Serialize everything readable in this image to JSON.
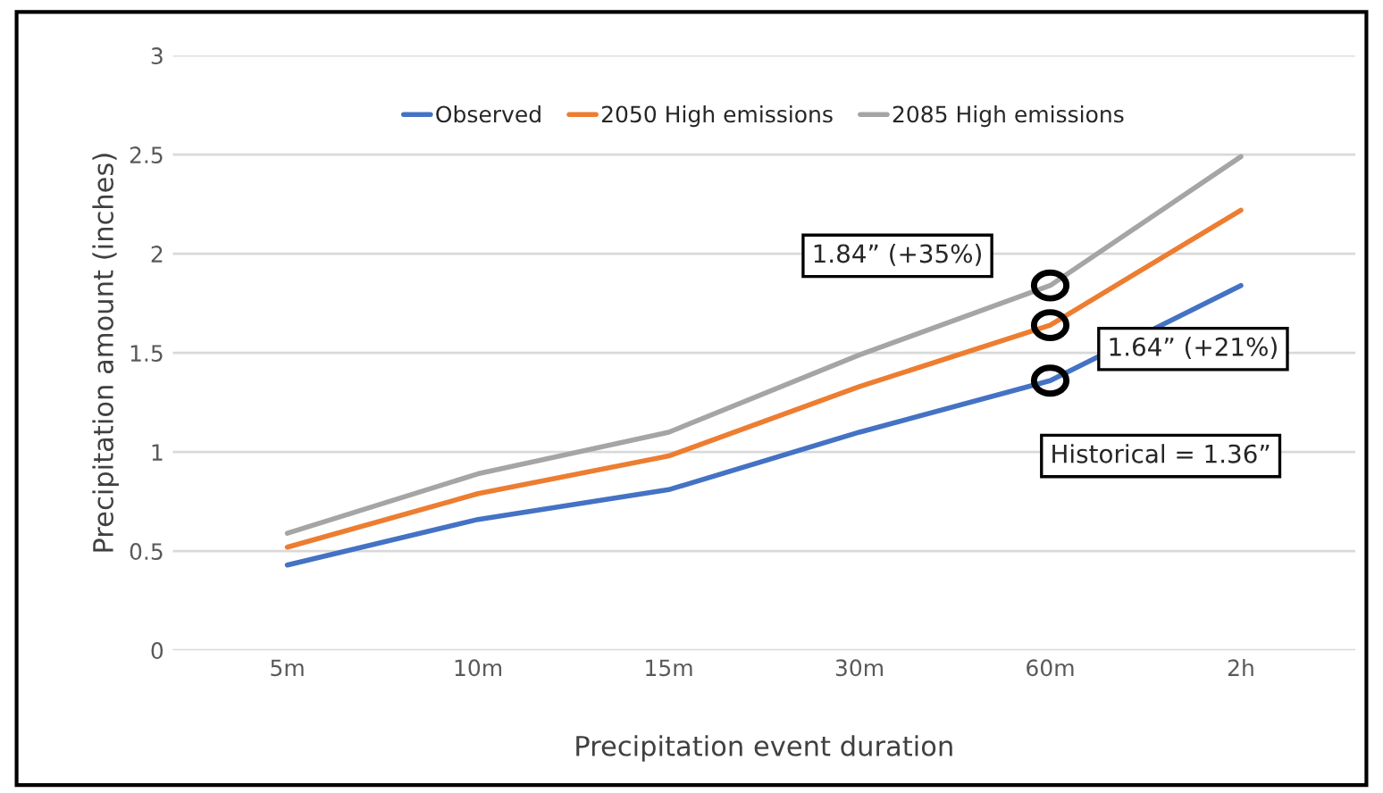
{
  "chart_data": {
    "type": "line",
    "xlabel": "Precipitation event duration",
    "ylabel": "Precipitation amount (inches)",
    "categories": [
      "5m",
      "10m",
      "15m",
      "30m",
      "60m",
      "2h"
    ],
    "series": [
      {
        "name": "Observed",
        "color": "#4472c4",
        "values": [
          0.43,
          0.66,
          0.81,
          1.1,
          1.36,
          1.84
        ]
      },
      {
        "name": "2050 High emissions",
        "color": "#ed7d31",
        "values": [
          0.52,
          0.79,
          0.98,
          1.33,
          1.64,
          2.22
        ]
      },
      {
        "name": "2085 High emissions",
        "color": "#a5a5a5",
        "values": [
          0.59,
          0.89,
          1.1,
          1.49,
          1.84,
          2.49
        ]
      }
    ],
    "ylim": [
      0,
      3
    ],
    "yticks": [
      0,
      0.5,
      1,
      1.5,
      2,
      2.5,
      3
    ],
    "grid": "y",
    "legend": "top",
    "marker": "none",
    "line_style": "solid",
    "annotations": [
      {
        "text": "1.84” (+35%)",
        "x": "60m",
        "y": 1.84
      },
      {
        "text": "1.64” (+21%)",
        "x": "60m",
        "y": 1.64
      },
      {
        "text": "Historical = 1.36”",
        "x": "60m",
        "y": 1.36
      }
    ]
  }
}
